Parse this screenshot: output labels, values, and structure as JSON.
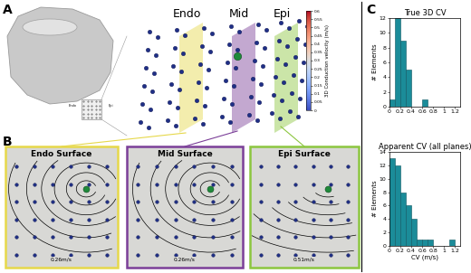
{
  "panel_labels": [
    "A",
    "B",
    "C"
  ],
  "panel_a": {
    "planes": [
      "Endo",
      "Mid",
      "Epi"
    ],
    "inset_labels": [
      "Endo",
      "Epi"
    ],
    "colorbar": {
      "label": "3D Conduction velocity (m/s)",
      "range": [
        0,
        0.6
      ],
      "ticks": [
        0,
        0.05,
        0.1,
        0.15,
        0.2,
        0.25,
        0.3,
        0.35,
        0.4,
        0.45,
        0.5,
        0.55,
        0.6
      ]
    }
  },
  "panel_b": {
    "surfaces": [
      {
        "title": "Endo Surface",
        "speed_label": "0.26m/s"
      },
      {
        "title": "Mid Surface",
        "speed_label": "0.26m/s"
      },
      {
        "title": "Epi Surface",
        "speed_label": "0.51m/s"
      }
    ]
  },
  "chart_data": [
    {
      "type": "histogram",
      "title": "True 3D CV",
      "y_label": "# Elements",
      "bins": [
        0,
        0.1,
        0.2,
        0.3,
        0.4,
        0.5,
        0.6,
        0.7
      ],
      "counts": [
        1,
        12,
        9,
        5,
        0,
        0,
        1
      ],
      "color": "#1b8c99",
      "xlim": [
        0,
        1.3
      ],
      "xticks": [
        0,
        0.2,
        0.4,
        0.6,
        0.8,
        1,
        1.2
      ],
      "ylim": [
        0,
        12
      ],
      "yticks": [
        0,
        2,
        4,
        6,
        8,
        10,
        12
      ]
    },
    {
      "type": "histogram",
      "title": "Apparent CV (all planes)",
      "x_label": "CV (m/s)",
      "y_label": "# Elements",
      "bins": [
        0,
        0.1,
        0.2,
        0.3,
        0.4,
        0.5,
        0.6,
        0.7,
        0.8,
        0.9,
        1,
        1.1,
        1.2
      ],
      "counts": [
        13,
        12,
        8,
        6,
        4,
        1,
        1,
        1,
        0,
        0,
        0,
        1
      ],
      "color": "#1b8c99",
      "xlim": [
        0,
        1.3
      ],
      "xticks": [
        0,
        0.2,
        0.4,
        0.6,
        0.8,
        1,
        1.2
      ],
      "ylim": [
        0,
        14
      ],
      "yticks": [
        0,
        2,
        4,
        6,
        8,
        10,
        12,
        14
      ]
    }
  ]
}
